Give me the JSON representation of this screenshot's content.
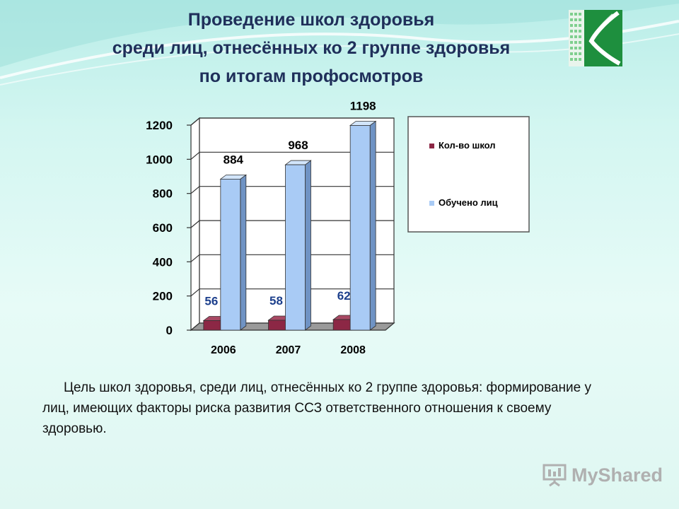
{
  "title": {
    "line1": "Проведение школ здоровья",
    "line2": "среди лиц, отнесённых ко 2 группе здоровья",
    "line3": "по итогам профосмотров"
  },
  "caption": "Цель школ здоровья, среди лиц, отнесённых ко 2 группе здоровья: формирование у лиц, имеющих факторы риска развития ССЗ ответственного отношения к своему здоровью.",
  "watermark": "MyShared",
  "colors": {
    "schools": "#8c2745",
    "trained": "#a9cbf5",
    "title": "#1f2f5a"
  },
  "chart_data": {
    "type": "bar",
    "categories": [
      "2006",
      "2007",
      "2008"
    ],
    "series": [
      {
        "name": "Кол-во школ",
        "values": [
          56,
          58,
          62
        ]
      },
      {
        "name": "Обучено лиц",
        "values": [
          884,
          968,
          1198
        ]
      }
    ],
    "yticks": [
      "0",
      "200",
      "400",
      "600",
      "800",
      "1000",
      "1200"
    ],
    "ylim": [
      0,
      1200
    ],
    "grid": true,
    "legend": "right",
    "projection": "3d"
  }
}
